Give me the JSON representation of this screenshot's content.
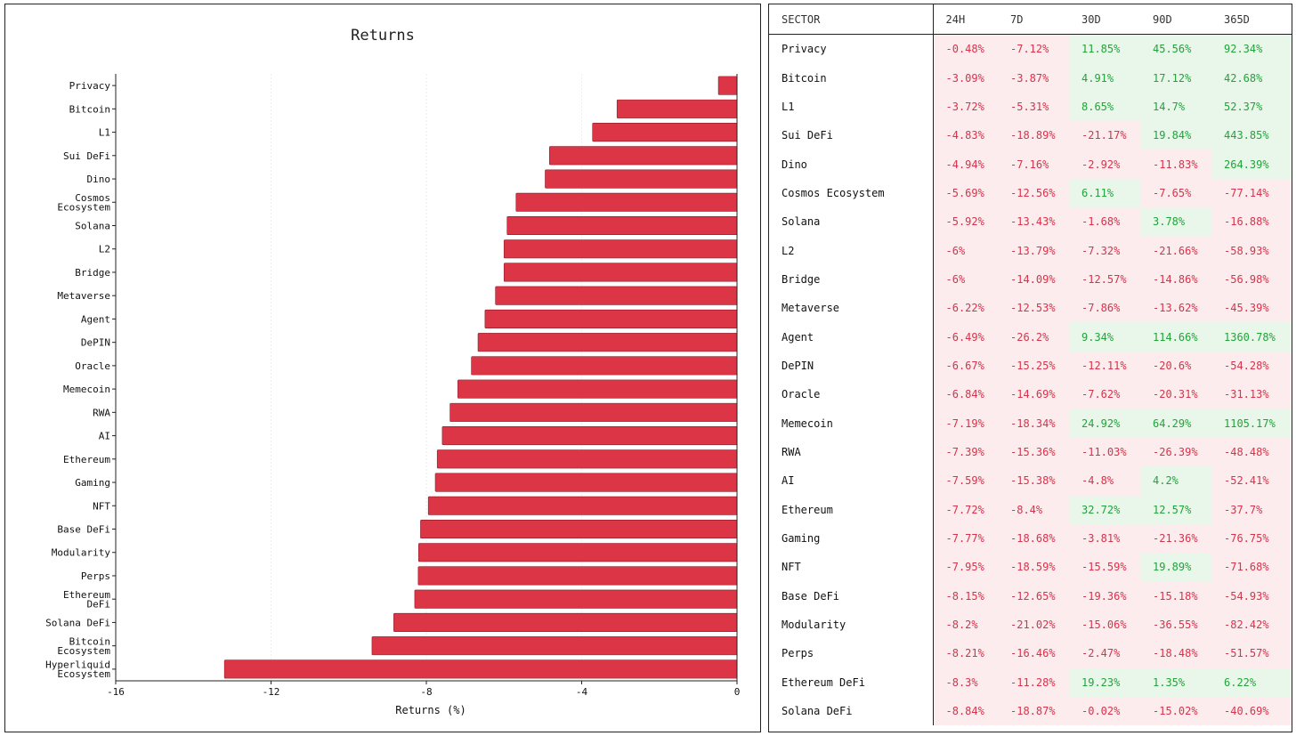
{
  "chart_data": {
    "type": "bar",
    "orientation": "horizontal",
    "title": "Returns",
    "xlabel": "Returns (%)",
    "ylabel": "",
    "xlim": [
      -16,
      0
    ],
    "xticks": [
      -16,
      -12,
      -8,
      -4,
      0
    ],
    "categories": [
      "Privacy",
      "Bitcoin",
      "L1",
      "Sui DeFi",
      "Dino",
      "Cosmos Ecosystem",
      "Solana",
      "L2",
      "Bridge",
      "Metaverse",
      "Agent",
      "DePIN",
      "Oracle",
      "Memecoin",
      "RWA",
      "AI",
      "Ethereum",
      "Gaming",
      "NFT",
      "Base DeFi",
      "Modularity",
      "Perps",
      "Ethereum DeFi",
      "Solana DeFi",
      "Bitcoin Ecosystem",
      "Hyperliquid Ecosystem"
    ],
    "category_lines": [
      [
        "Privacy"
      ],
      [
        "Bitcoin"
      ],
      [
        "L1"
      ],
      [
        "Sui DeFi"
      ],
      [
        "Dino"
      ],
      [
        "Cosmos",
        "Ecosystem"
      ],
      [
        "Solana"
      ],
      [
        "L2"
      ],
      [
        "Bridge"
      ],
      [
        "Metaverse"
      ],
      [
        "Agent"
      ],
      [
        "DePIN"
      ],
      [
        "Oracle"
      ],
      [
        "Memecoin"
      ],
      [
        "RWA"
      ],
      [
        "AI"
      ],
      [
        "Ethereum"
      ],
      [
        "Gaming"
      ],
      [
        "NFT"
      ],
      [
        "Base DeFi"
      ],
      [
        "Modularity"
      ],
      [
        "Perps"
      ],
      [
        "Ethereum",
        "DeFi"
      ],
      [
        "Solana DeFi"
      ],
      [
        "Bitcoin",
        "Ecosystem"
      ],
      [
        "Hyperliquid",
        "Ecosystem"
      ]
    ],
    "values": [
      -0.48,
      -3.09,
      -3.72,
      -4.83,
      -4.94,
      -5.69,
      -5.92,
      -6.0,
      -6.0,
      -6.22,
      -6.49,
      -6.67,
      -6.84,
      -7.19,
      -7.39,
      -7.59,
      -7.72,
      -7.77,
      -7.95,
      -8.15,
      -8.2,
      -8.21,
      -8.3,
      -8.84,
      -9.4,
      -13.2
    ],
    "bar_color": "#dc3545",
    "grid": true
  },
  "table": {
    "headers": [
      "SECTOR",
      "24H",
      "7D",
      "30D",
      "90D",
      "365D"
    ],
    "rows": [
      {
        "sector": "Privacy",
        "values": [
          "-0.48%",
          "-7.12%",
          "11.85%",
          "45.56%",
          "92.34%"
        ]
      },
      {
        "sector": "Bitcoin",
        "values": [
          "-3.09%",
          "-3.87%",
          "4.91%",
          "17.12%",
          "42.68%"
        ]
      },
      {
        "sector": "L1",
        "values": [
          "-3.72%",
          "-5.31%",
          "8.65%",
          "14.7%",
          "52.37%"
        ]
      },
      {
        "sector": "Sui DeFi",
        "values": [
          "-4.83%",
          "-18.89%",
          "-21.17%",
          "19.84%",
          "443.85%"
        ]
      },
      {
        "sector": "Dino",
        "values": [
          "-4.94%",
          "-7.16%",
          "-2.92%",
          "-11.83%",
          "264.39%"
        ]
      },
      {
        "sector": "Cosmos Ecosystem",
        "values": [
          "-5.69%",
          "-12.56%",
          "6.11%",
          "-7.65%",
          "-77.14%"
        ]
      },
      {
        "sector": "Solana",
        "values": [
          "-5.92%",
          "-13.43%",
          "-1.68%",
          "3.78%",
          "-16.88%"
        ]
      },
      {
        "sector": "L2",
        "values": [
          "-6%",
          "-13.79%",
          "-7.32%",
          "-21.66%",
          "-58.93%"
        ]
      },
      {
        "sector": "Bridge",
        "values": [
          "-6%",
          "-14.09%",
          "-12.57%",
          "-14.86%",
          "-56.98%"
        ]
      },
      {
        "sector": "Metaverse",
        "values": [
          "-6.22%",
          "-12.53%",
          "-7.86%",
          "-13.62%",
          "-45.39%"
        ]
      },
      {
        "sector": "Agent",
        "values": [
          "-6.49%",
          "-26.2%",
          "9.34%",
          "114.66%",
          "1360.78%"
        ]
      },
      {
        "sector": "DePIN",
        "values": [
          "-6.67%",
          "-15.25%",
          "-12.11%",
          "-20.6%",
          "-54.28%"
        ]
      },
      {
        "sector": "Oracle",
        "values": [
          "-6.84%",
          "-14.69%",
          "-7.62%",
          "-20.31%",
          "-31.13%"
        ]
      },
      {
        "sector": "Memecoin",
        "values": [
          "-7.19%",
          "-18.34%",
          "24.92%",
          "64.29%",
          "1105.17%"
        ]
      },
      {
        "sector": "RWA",
        "values": [
          "-7.39%",
          "-15.36%",
          "-11.03%",
          "-26.39%",
          "-48.48%"
        ]
      },
      {
        "sector": "AI",
        "values": [
          "-7.59%",
          "-15.38%",
          "-4.8%",
          "4.2%",
          "-52.41%"
        ]
      },
      {
        "sector": "Ethereum",
        "values": [
          "-7.72%",
          "-8.4%",
          "32.72%",
          "12.57%",
          "-37.7%"
        ]
      },
      {
        "sector": "Gaming",
        "values": [
          "-7.77%",
          "-18.68%",
          "-3.81%",
          "-21.36%",
          "-76.75%"
        ]
      },
      {
        "sector": "NFT",
        "values": [
          "-7.95%",
          "-18.59%",
          "-15.59%",
          "19.89%",
          "-71.68%"
        ]
      },
      {
        "sector": "Base DeFi",
        "values": [
          "-8.15%",
          "-12.65%",
          "-19.36%",
          "-15.18%",
          "-54.93%"
        ]
      },
      {
        "sector": "Modularity",
        "values": [
          "-8.2%",
          "-21.02%",
          "-15.06%",
          "-36.55%",
          "-82.42%"
        ]
      },
      {
        "sector": "Perps",
        "values": [
          "-8.21%",
          "-16.46%",
          "-2.47%",
          "-18.48%",
          "-51.57%"
        ]
      },
      {
        "sector": "Ethereum DeFi",
        "values": [
          "-8.3%",
          "-11.28%",
          "19.23%",
          "1.35%",
          "6.22%"
        ]
      },
      {
        "sector": "Solana DeFi",
        "values": [
          "-8.84%",
          "-18.87%",
          "-0.02%",
          "-15.02%",
          "-40.69%"
        ]
      }
    ]
  },
  "colors": {
    "negative_text": "#d6334a",
    "negative_bg": "#fdecee",
    "positive_text": "#22a33a",
    "positive_bg": "#e9f7ea"
  }
}
